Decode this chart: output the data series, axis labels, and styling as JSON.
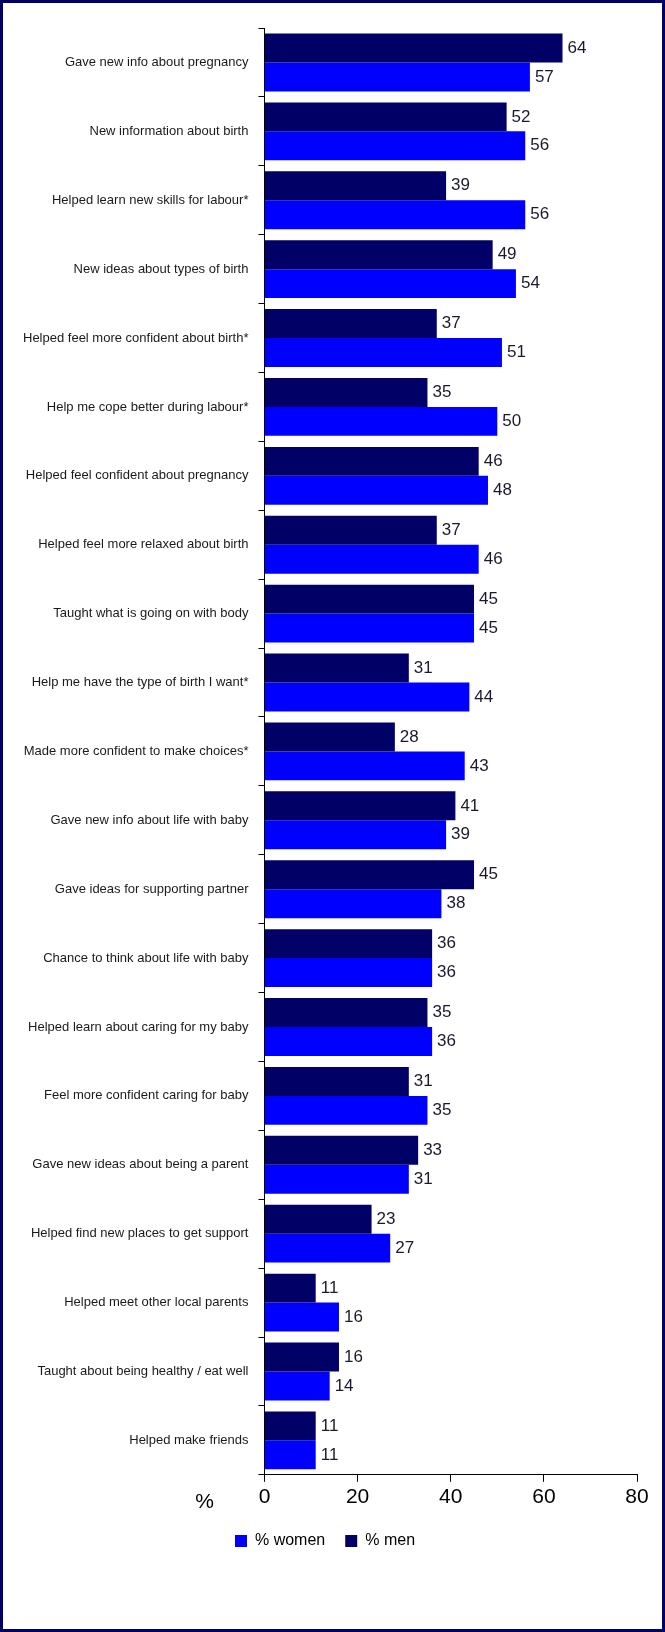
{
  "chart_data": {
    "type": "bar",
    "orientation": "horizontal",
    "xlabel": "%",
    "categories": [
      "Gave new info about pregnancy",
      "New information about birth",
      "Helped learn new skills for labour*",
      "New ideas about types of birth",
      "Helped feel more confident about birth*",
      "Help me cope better during labour*",
      "Helped feel confident about pregnancy",
      "Helped feel more relaxed about birth",
      "Taught what is going on with body",
      "Help me have the type of birth I want*",
      "Made more confident to make choices*",
      "Gave new info about life with baby",
      "Gave ideas for supporting partner",
      "Chance to think about life with baby",
      "Helped learn about caring for my baby",
      "Feel more confident caring for baby",
      "Gave new ideas about being a parent",
      "Helped find new places to get support",
      "Helped meet other local parents",
      "Taught about being healthy / eat well",
      "Helped make friends"
    ],
    "series": [
      {
        "name": "% men",
        "color": "#000066",
        "values": [
          64,
          52,
          39,
          49,
          37,
          35,
          46,
          37,
          45,
          31,
          28,
          41,
          45,
          36,
          35,
          31,
          33,
          23,
          11,
          16,
          11
        ]
      },
      {
        "name": "% women",
        "color": "#0000ff",
        "values": [
          57,
          56,
          56,
          54,
          51,
          50,
          48,
          46,
          45,
          44,
          43,
          39,
          38,
          36,
          36,
          35,
          31,
          27,
          16,
          14,
          11
        ]
      }
    ],
    "xlim": [
      0,
      80
    ],
    "xticks": [
      0,
      20,
      40,
      60,
      80
    ],
    "grid": false,
    "legend": "bottom",
    "data_labels": true
  }
}
